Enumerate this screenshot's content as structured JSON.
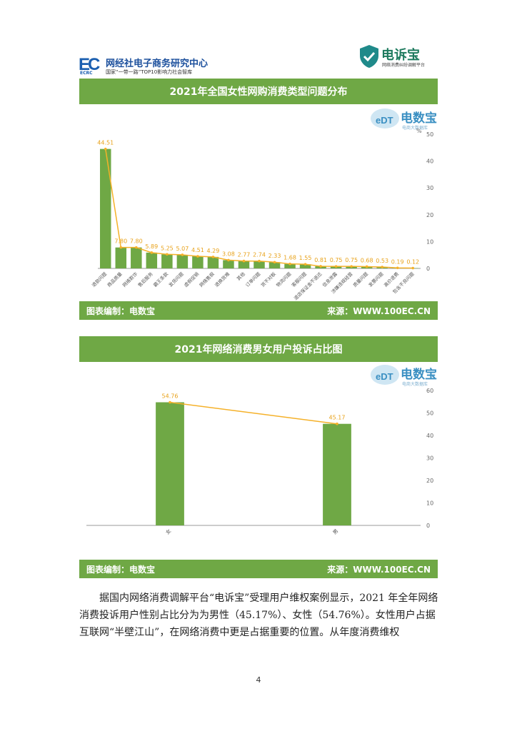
{
  "header": {
    "org_logo_mark": "EC",
    "org_logo_sub": "ECRC",
    "org_name": "网经社电子商务研究中心",
    "org_tagline": "国家“一带一路”TOP10影响力社会智库",
    "brand_name": "电诉宝",
    "brand_tagline": "网络消费纠纷调解平台"
  },
  "watermark": {
    "brand": "电数宝",
    "mark": "eDT",
    "sub": "电商大数据库"
  },
  "chart1": {
    "title": "2021年全国女性网购消费类型问题分布",
    "footer_left": "图表编制：电数宝",
    "footer_right": "来源：WWW.100EC.CN"
  },
  "chart2": {
    "title": "2021年网络消费男女用户投诉占比图",
    "footer_left": "图表编制：电数宝",
    "footer_right": "来源：WWW.100EC.CN"
  },
  "chart_data": [
    {
      "type": "bar",
      "title": "2021年全国女性网购消费类型问题分布",
      "ylabel": "%",
      "ylim": [
        0,
        50
      ],
      "yticks": [
        0,
        10,
        20,
        30,
        40,
        50
      ],
      "categories": [
        "退款问题",
        "商品质量",
        "网络欺诈",
        "售后服务",
        "霸王条款",
        "发货问题",
        "虚假促销",
        "网络售假",
        "退换货难",
        "其他",
        "订单问题",
        "货不对板",
        "物流问题",
        "客服问题",
        "退店保证金不退还",
        "信息泄露",
        "涉嫌违规经营",
        "质量问题",
        "发票问题",
        "高价退费",
        "包含不良问题"
      ],
      "values": [
        44.51,
        7.8,
        7.8,
        5.89,
        5.25,
        5.07,
        4.51,
        4.29,
        3.08,
        2.77,
        2.74,
        2.33,
        1.68,
        1.55,
        0.81,
        0.75,
        0.75,
        0.68,
        0.53,
        0.19,
        0.12
      ],
      "data_labels": [
        "44.51",
        "7.80",
        "7.80",
        "5.89",
        "5.25",
        "5.07",
        "4.51",
        "4.29",
        "3.08",
        "2.77",
        "2.74",
        "2.33",
        "1.68",
        "1.55",
        "0.81",
        "0.75",
        "0.75",
        "0.68",
        "0.53",
        "0.19",
        "0.12"
      ],
      "colors": {
        "bar": "#6fa845",
        "line": "#f5b129"
      },
      "series_line": "trend line over bars",
      "grid": false
    },
    {
      "type": "bar",
      "title": "2021年网络消费男女用户投诉占比图",
      "ylim": [
        0,
        60
      ],
      "yticks": [
        0,
        10,
        20,
        30,
        40,
        50,
        60
      ],
      "categories": [
        "女",
        "男"
      ],
      "values": [
        54.76,
        45.17
      ],
      "data_labels": [
        "54.76",
        "45.17"
      ],
      "colors": {
        "bar": "#6fa845",
        "line": "#f5b129"
      },
      "grid": false
    }
  ],
  "paragraph": "据国内网络消费调解平台“电诉宝”受理用户维权案例显示，2021 年全年网络消费投诉用户性别占比分为为男性（45.17%）、女性（54.76%）。女性用户占据互联网“半壁江山”，在网络消费中更是占据重要的位置。从年度消费维权",
  "page_number": "4"
}
